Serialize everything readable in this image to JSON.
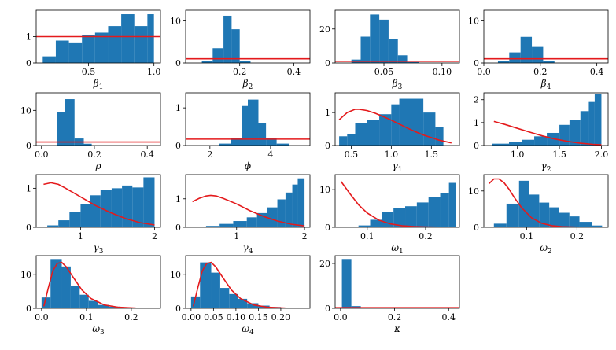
{
  "figure": {
    "bar_color": "#1f77b4",
    "prior_color": "#e41a1c",
    "background": "#ffffff"
  },
  "chart_data": [
    {
      "name": "beta1",
      "type": "bar",
      "xlabel": "β",
      "xlabel_sub": "1",
      "xlim": [
        0.1,
        1.05
      ],
      "ylim": [
        0,
        2.0
      ],
      "xticks": [
        0.5,
        1.0
      ],
      "xtick_labels": [
        "0.5",
        "1.0"
      ],
      "yticks": [
        0,
        1
      ],
      "ytick_labels": [
        "0",
        "1"
      ],
      "bins": [
        [
          0.15,
          0.25,
          0.25
        ],
        [
          0.25,
          0.35,
          0.85
        ],
        [
          0.35,
          0.45,
          0.75
        ],
        [
          0.45,
          0.55,
          1.05
        ],
        [
          0.55,
          0.65,
          1.15
        ],
        [
          0.65,
          0.75,
          1.4
        ],
        [
          0.75,
          0.85,
          1.85
        ],
        [
          0.85,
          0.95,
          1.4
        ],
        [
          0.95,
          1.0,
          1.85
        ]
      ],
      "prior": {
        "kind": "hline",
        "y": 1.0
      }
    },
    {
      "name": "beta2",
      "type": "bar",
      "xlabel": "β",
      "xlabel_sub": "2",
      "xlim": [
        0.0,
        0.46
      ],
      "ylim": [
        0,
        12.5
      ],
      "xticks": [
        0.2,
        0.4
      ],
      "xtick_labels": [
        "0.2",
        "0.4"
      ],
      "yticks": [
        0,
        10
      ],
      "ytick_labels": [
        "0",
        "10"
      ],
      "bins": [
        [
          0.06,
          0.1,
          0.5
        ],
        [
          0.1,
          0.14,
          3.5
        ],
        [
          0.14,
          0.17,
          11.2
        ],
        [
          0.17,
          0.2,
          8.0
        ],
        [
          0.2,
          0.24,
          0.5
        ]
      ],
      "prior": {
        "kind": "hline",
        "y": 1.0
      }
    },
    {
      "name": "beta3",
      "type": "bar",
      "xlabel": "β",
      "xlabel_sub": "3",
      "xlim": [
        0.008,
        0.115
      ],
      "ylim": [
        0,
        31
      ],
      "xticks": [
        0.05,
        0.1
      ],
      "xtick_labels": [
        "0.05",
        "0.10"
      ],
      "yticks": [
        0,
        20
      ],
      "ytick_labels": [
        "0",
        "20"
      ],
      "bins": [
        [
          0.022,
          0.03,
          2.0
        ],
        [
          0.03,
          0.038,
          15.5
        ],
        [
          0.038,
          0.046,
          28.5
        ],
        [
          0.046,
          0.054,
          25.5
        ],
        [
          0.054,
          0.062,
          14.0
        ],
        [
          0.062,
          0.07,
          4.5
        ],
        [
          0.07,
          0.08,
          0.5
        ]
      ],
      "prior": {
        "kind": "hline",
        "y": 1.0
      }
    },
    {
      "name": "beta4",
      "type": "bar",
      "xlabel": "β",
      "xlabel_sub": "4",
      "xlim": [
        0.0,
        0.44
      ],
      "ylim": [
        0,
        12.5
      ],
      "xticks": [
        0.0,
        0.2,
        0.4
      ],
      "xtick_labels": [
        "0.0",
        "0.2",
        "0.4"
      ],
      "yticks": [
        0,
        10
      ],
      "ytick_labels": [
        "0",
        "10"
      ],
      "bins": [
        [
          0.05,
          0.09,
          0.5
        ],
        [
          0.09,
          0.13,
          2.5
        ],
        [
          0.13,
          0.17,
          6.2
        ],
        [
          0.17,
          0.21,
          3.8
        ],
        [
          0.21,
          0.25,
          0.5
        ]
      ],
      "prior": {
        "kind": "hline",
        "y": 1.0
      }
    },
    {
      "name": "rho",
      "type": "bar",
      "xlabel": "ρ",
      "xlabel_sub": "",
      "xlim": [
        -0.02,
        0.45
      ],
      "ylim": [
        0,
        15
      ],
      "xticks": [
        0.0,
        0.2,
        0.4
      ],
      "xtick_labels": [
        "0.0",
        "0.2",
        "0.4"
      ],
      "yticks": [
        0,
        10
      ],
      "ytick_labels": [
        "0",
        "10"
      ],
      "bins": [
        [
          0.06,
          0.09,
          9.5
        ],
        [
          0.09,
          0.125,
          13.2
        ],
        [
          0.125,
          0.16,
          2.0
        ],
        [
          0.16,
          0.19,
          0.5
        ]
      ],
      "prior": {
        "kind": "hline",
        "y": 1.0
      }
    },
    {
      "name": "phi",
      "type": "bar",
      "xlabel": "ϕ",
      "xlabel_sub": "",
      "xlim": [
        1.2,
        5.3
      ],
      "ylim": [
        0,
        1.4
      ],
      "xticks": [
        2,
        4
      ],
      "xtick_labels": [
        "2",
        "4"
      ],
      "yticks": [
        0,
        1
      ],
      "ytick_labels": [
        "0",
        "1"
      ],
      "bins": [
        [
          2.3,
          2.7,
          0.05
        ],
        [
          2.7,
          3.05,
          0.2
        ],
        [
          3.05,
          3.25,
          1.05
        ],
        [
          3.25,
          3.6,
          1.22
        ],
        [
          3.6,
          3.85,
          0.6
        ],
        [
          3.85,
          4.2,
          0.2
        ],
        [
          4.2,
          4.6,
          0.05
        ]
      ],
      "prior": {
        "kind": "hline",
        "y": 0.17
      }
    },
    {
      "name": "gamma1",
      "type": "bar",
      "xlabel": "γ",
      "xlabel_sub": "1",
      "xlim": [
        0.3,
        1.85
      ],
      "ylim": [
        0,
        1.6
      ],
      "xticks": [
        0.5,
        1.0,
        1.5
      ],
      "xtick_labels": [
        "0.5",
        "1.0",
        "1.5"
      ],
      "yticks": [
        0,
        1
      ],
      "ytick_labels": [
        "0",
        "1"
      ],
      "bins": [
        [
          0.35,
          0.45,
          0.28
        ],
        [
          0.45,
          0.55,
          0.35
        ],
        [
          0.55,
          0.7,
          0.68
        ],
        [
          0.7,
          0.85,
          0.78
        ],
        [
          0.85,
          1.0,
          0.95
        ],
        [
          1.0,
          1.1,
          1.25
        ],
        [
          1.1,
          1.25,
          1.42
        ],
        [
          1.25,
          1.4,
          1.42
        ],
        [
          1.4,
          1.55,
          1.0
        ],
        [
          1.55,
          1.65,
          0.55
        ]
      ],
      "prior": {
        "kind": "curve",
        "x": [
          0.35,
          0.45,
          0.55,
          0.6,
          0.7,
          0.8,
          0.9,
          1.0,
          1.1,
          1.2,
          1.3,
          1.4,
          1.5,
          1.6,
          1.75
        ],
        "y": [
          0.78,
          1.0,
          1.1,
          1.1,
          1.06,
          0.98,
          0.88,
          0.77,
          0.65,
          0.53,
          0.42,
          0.32,
          0.24,
          0.16,
          0.08
        ]
      }
    },
    {
      "name": "gamma2",
      "type": "bar",
      "xlabel": "γ",
      "xlabel_sub": "2",
      "xlim": [
        0.6,
        2.08
      ],
      "ylim": [
        0,
        2.3
      ],
      "xticks": [
        1.0,
        1.5,
        2.0
      ],
      "xtick_labels": [
        "1.0",
        "1.5",
        "2.0"
      ],
      "yticks": [
        0,
        1,
        2
      ],
      "ytick_labels": [
        "0",
        "1",
        "2"
      ],
      "bins": [
        [
          0.7,
          0.9,
          0.08
        ],
        [
          0.9,
          1.05,
          0.15
        ],
        [
          1.05,
          1.2,
          0.25
        ],
        [
          1.2,
          1.35,
          0.4
        ],
        [
          1.35,
          1.5,
          0.55
        ],
        [
          1.5,
          1.62,
          0.9
        ],
        [
          1.62,
          1.75,
          1.1
        ],
        [
          1.75,
          1.85,
          1.5
        ],
        [
          1.85,
          1.92,
          1.9
        ],
        [
          1.92,
          2.0,
          2.25
        ]
      ],
      "prior": {
        "kind": "curve",
        "x": [
          0.72,
          0.85,
          1.0,
          1.15,
          1.3,
          1.45,
          1.6,
          1.75,
          1.9,
          2.0
        ],
        "y": [
          1.05,
          0.92,
          0.75,
          0.58,
          0.42,
          0.28,
          0.18,
          0.1,
          0.05,
          0.03
        ]
      }
    },
    {
      "name": "gamma3",
      "type": "bar",
      "xlabel": "γ",
      "xlabel_sub": "3",
      "xlim": [
        0.4,
        2.08
      ],
      "ylim": [
        0,
        1.35
      ],
      "xticks": [
        1,
        2
      ],
      "xtick_labels": [
        "1",
        "2"
      ],
      "yticks": [
        0,
        1
      ],
      "ytick_labels": [
        "0",
        "1"
      ],
      "bins": [
        [
          0.55,
          0.7,
          0.05
        ],
        [
          0.7,
          0.85,
          0.18
        ],
        [
          0.85,
          1.0,
          0.4
        ],
        [
          1.0,
          1.13,
          0.6
        ],
        [
          1.13,
          1.27,
          0.82
        ],
        [
          1.27,
          1.42,
          0.95
        ],
        [
          1.42,
          1.56,
          1.0
        ],
        [
          1.56,
          1.7,
          1.07
        ],
        [
          1.7,
          1.85,
          1.02
        ],
        [
          1.85,
          2.0,
          1.28
        ]
      ],
      "prior": {
        "kind": "curve",
        "x": [
          0.5,
          0.6,
          0.7,
          0.8,
          1.0,
          1.2,
          1.4,
          1.6,
          1.8,
          2.0
        ],
        "y": [
          1.1,
          1.14,
          1.1,
          1.0,
          0.78,
          0.56,
          0.38,
          0.23,
          0.12,
          0.06
        ]
      }
    },
    {
      "name": "gamma4",
      "type": "bar",
      "xlabel": "γ",
      "xlabel_sub": "4",
      "xlim": [
        0.25,
        2.08
      ],
      "ylim": [
        0,
        1.85
      ],
      "xticks": [
        1,
        2
      ],
      "xtick_labels": [
        "1",
        "2"
      ],
      "yticks": [
        0,
        1
      ],
      "ytick_labels": [
        "0",
        "1"
      ],
      "bins": [
        [
          0.55,
          0.75,
          0.05
        ],
        [
          0.75,
          0.95,
          0.12
        ],
        [
          0.95,
          1.15,
          0.22
        ],
        [
          1.15,
          1.3,
          0.35
        ],
        [
          1.3,
          1.45,
          0.5
        ],
        [
          1.45,
          1.6,
          0.7
        ],
        [
          1.6,
          1.72,
          0.98
        ],
        [
          1.72,
          1.82,
          1.22
        ],
        [
          1.82,
          1.9,
          1.5
        ],
        [
          1.9,
          2.0,
          1.72
        ]
      ],
      "prior": {
        "kind": "curve",
        "x": [
          0.35,
          0.45,
          0.55,
          0.62,
          0.7,
          0.8,
          1.0,
          1.2,
          1.4,
          1.6,
          1.8,
          2.0
        ],
        "y": [
          0.9,
          1.02,
          1.1,
          1.12,
          1.1,
          1.02,
          0.82,
          0.58,
          0.38,
          0.22,
          0.11,
          0.05
        ]
      }
    },
    {
      "name": "omega1",
      "type": "bar",
      "xlabel": "ω",
      "xlabel_sub": "1",
      "xlim": [
        0.045,
        0.258
      ],
      "ylim": [
        0,
        14
      ],
      "xticks": [
        0.1,
        0.2
      ],
      "xtick_labels": [
        "0.1",
        "0.2"
      ],
      "yticks": [
        0,
        10
      ],
      "ytick_labels": [
        "0",
        "10"
      ],
      "bins": [
        [
          0.085,
          0.105,
          0.5
        ],
        [
          0.105,
          0.125,
          2.0
        ],
        [
          0.125,
          0.145,
          4.0
        ],
        [
          0.145,
          0.165,
          5.2
        ],
        [
          0.165,
          0.185,
          5.6
        ],
        [
          0.185,
          0.205,
          6.6
        ],
        [
          0.205,
          0.225,
          8.0
        ],
        [
          0.225,
          0.24,
          9.0
        ],
        [
          0.24,
          0.252,
          11.8
        ]
      ],
      "prior": {
        "kind": "curve",
        "x": [
          0.055,
          0.07,
          0.085,
          0.1,
          0.12,
          0.14,
          0.16,
          0.18,
          0.2,
          0.22,
          0.24,
          0.25
        ],
        "y": [
          12.2,
          9.0,
          6.0,
          3.8,
          1.9,
          0.9,
          0.4,
          0.18,
          0.08,
          0.04,
          0.02,
          0.01
        ]
      }
    },
    {
      "name": "omega2",
      "type": "bar",
      "xlabel": "ω",
      "xlabel_sub": "2",
      "xlim": [
        0.015,
        0.262
      ],
      "ylim": [
        0,
        14.5
      ],
      "xticks": [
        0.1,
        0.2
      ],
      "xtick_labels": [
        "0.1",
        "0.2"
      ],
      "yticks": [
        0,
        10
      ],
      "ytick_labels": [
        "0",
        "10"
      ],
      "bins": [
        [
          0.035,
          0.06,
          1.0
        ],
        [
          0.06,
          0.085,
          6.5
        ],
        [
          0.085,
          0.105,
          12.8
        ],
        [
          0.105,
          0.125,
          9.0
        ],
        [
          0.125,
          0.145,
          6.8
        ],
        [
          0.145,
          0.165,
          5.5
        ],
        [
          0.165,
          0.185,
          4.0
        ],
        [
          0.185,
          0.205,
          3.0
        ],
        [
          0.205,
          0.23,
          1.5
        ],
        [
          0.23,
          0.25,
          0.5
        ]
      ],
      "prior": {
        "kind": "curve",
        "x": [
          0.025,
          0.035,
          0.045,
          0.055,
          0.065,
          0.075,
          0.09,
          0.11,
          0.13,
          0.15,
          0.17,
          0.2,
          0.23
        ],
        "y": [
          12.0,
          13.3,
          13.3,
          12.3,
          10.5,
          8.3,
          5.4,
          2.6,
          1.1,
          0.45,
          0.18,
          0.05,
          0.01
        ]
      }
    },
    {
      "name": "omega3",
      "type": "bar",
      "xlabel": "ω",
      "xlabel_sub": "3",
      "xlim": [
        -0.012,
        0.265
      ],
      "ylim": [
        0,
        15.5
      ],
      "xticks": [
        0.0,
        0.1,
        0.2
      ],
      "xtick_labels": [
        "0.0",
        "0.1",
        "0.2"
      ],
      "yticks": [
        0,
        10
      ],
      "ytick_labels": [
        "0",
        "10"
      ],
      "bins": [
        [
          0.0,
          0.02,
          3.2
        ],
        [
          0.02,
          0.045,
          14.5
        ],
        [
          0.045,
          0.065,
          12.3
        ],
        [
          0.065,
          0.085,
          6.5
        ],
        [
          0.085,
          0.105,
          4.0
        ],
        [
          0.105,
          0.125,
          2.2
        ],
        [
          0.125,
          0.15,
          1.0
        ],
        [
          0.15,
          0.175,
          0.5
        ],
        [
          0.175,
          0.2,
          0.3
        ],
        [
          0.2,
          0.24,
          0.15
        ]
      ],
      "prior": {
        "kind": "curve",
        "x": [
          0.005,
          0.015,
          0.025,
          0.035,
          0.045,
          0.055,
          0.07,
          0.09,
          0.11,
          0.14,
          0.17,
          0.21,
          0.25
        ],
        "y": [
          0.6,
          6.0,
          11.0,
          13.2,
          13.5,
          12.2,
          9.2,
          5.4,
          2.9,
          1.0,
          0.35,
          0.08,
          0.02
        ]
      }
    },
    {
      "name": "omega4",
      "type": "bar",
      "xlabel": "ω",
      "xlabel_sub": "4",
      "xlim": [
        -0.012,
        0.265
      ],
      "ylim": [
        0,
        15.5
      ],
      "xticks": [
        0.0,
        0.05,
        0.1,
        0.15,
        0.2
      ],
      "xtick_labels": [
        "0.00",
        "0.05",
        "0.10",
        "0.15",
        "0.20"
      ],
      "yticks": [
        0,
        10
      ],
      "ytick_labels": [
        "0",
        "10"
      ],
      "bins": [
        [
          0.0,
          0.02,
          3.5
        ],
        [
          0.02,
          0.045,
          13.5
        ],
        [
          0.045,
          0.065,
          10.5
        ],
        [
          0.065,
          0.085,
          6.0
        ],
        [
          0.085,
          0.105,
          4.2
        ],
        [
          0.105,
          0.125,
          2.8
        ],
        [
          0.125,
          0.15,
          1.5
        ],
        [
          0.15,
          0.175,
          0.8
        ],
        [
          0.175,
          0.2,
          0.4
        ],
        [
          0.2,
          0.24,
          0.2
        ]
      ],
      "prior": {
        "kind": "curve",
        "x": [
          0.005,
          0.015,
          0.025,
          0.035,
          0.045,
          0.055,
          0.07,
          0.09,
          0.11,
          0.14,
          0.17,
          0.21,
          0.25
        ],
        "y": [
          0.6,
          6.0,
          11.0,
          13.2,
          13.5,
          12.2,
          9.2,
          5.4,
          2.9,
          1.0,
          0.35,
          0.08,
          0.02
        ]
      }
    },
    {
      "name": "kappa",
      "type": "bar",
      "xlabel": "κ",
      "xlabel_sub": "",
      "xlim": [
        -0.02,
        0.44
      ],
      "ylim": [
        0,
        23.5
      ],
      "xticks": [
        0.0,
        0.2,
        0.4
      ],
      "xtick_labels": [
        "0.0",
        "0.2",
        "0.4"
      ],
      "yticks": [
        0,
        20
      ],
      "ytick_labels": [
        "0",
        "20"
      ],
      "bins": [
        [
          0.005,
          0.04,
          22.0
        ],
        [
          0.04,
          0.075,
          1.0
        ],
        [
          0.075,
          0.11,
          0.2
        ]
      ],
      "prior": {
        "kind": "hline",
        "y": 0.3
      }
    }
  ]
}
